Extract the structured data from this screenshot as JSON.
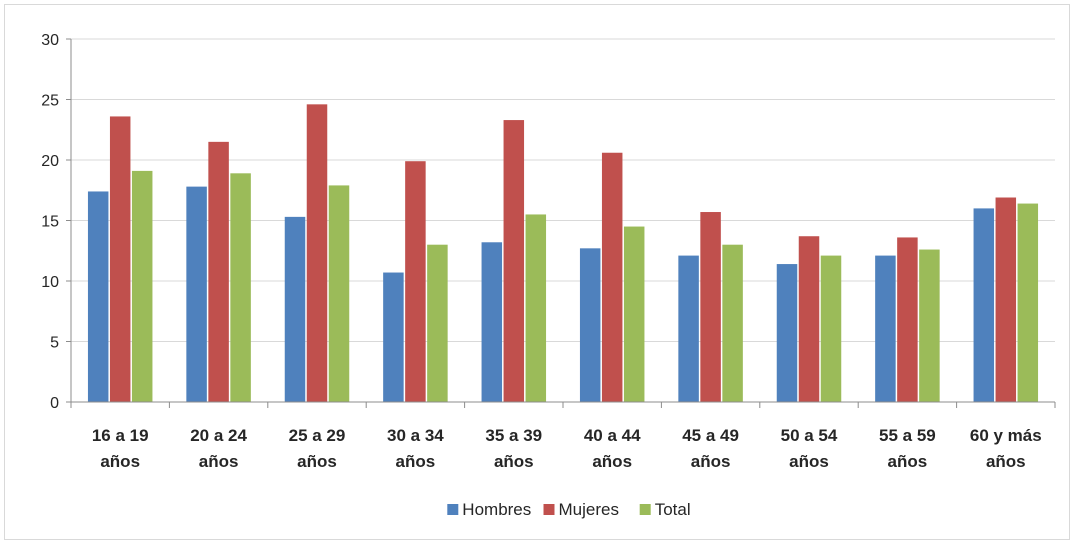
{
  "chart_data": {
    "type": "bar",
    "title": "",
    "xlabel": "",
    "ylabel": "",
    "ylim": [
      0,
      30
    ],
    "yticks": [
      0,
      5,
      10,
      15,
      20,
      25,
      30
    ],
    "grid": true,
    "legend_position": "bottom",
    "categories": [
      [
        "16 a 19",
        "años"
      ],
      [
        "20 a 24",
        "años"
      ],
      [
        "25 a 29",
        "años"
      ],
      [
        "30 a 34",
        "años"
      ],
      [
        "35 a 39",
        "años"
      ],
      [
        "40 a 44",
        "años"
      ],
      [
        "45 a 49",
        "años"
      ],
      [
        "50 a 54",
        "años"
      ],
      [
        "55 a 59",
        "años"
      ],
      [
        "60 y más",
        "años"
      ]
    ],
    "series": [
      {
        "name": "Hombres",
        "color": "#4f81bd",
        "values": [
          17.4,
          17.8,
          15.3,
          10.7,
          13.2,
          12.7,
          12.1,
          11.4,
          12.1,
          16.0
        ]
      },
      {
        "name": "Mujeres",
        "color": "#c0504d",
        "values": [
          23.6,
          21.5,
          24.6,
          19.9,
          23.3,
          20.6,
          15.7,
          13.7,
          13.6,
          16.9
        ]
      },
      {
        "name": "Total",
        "color": "#9bbb59",
        "values": [
          19.1,
          18.9,
          17.9,
          13.0,
          15.5,
          14.5,
          13.0,
          12.1,
          12.6,
          16.4
        ]
      }
    ]
  }
}
